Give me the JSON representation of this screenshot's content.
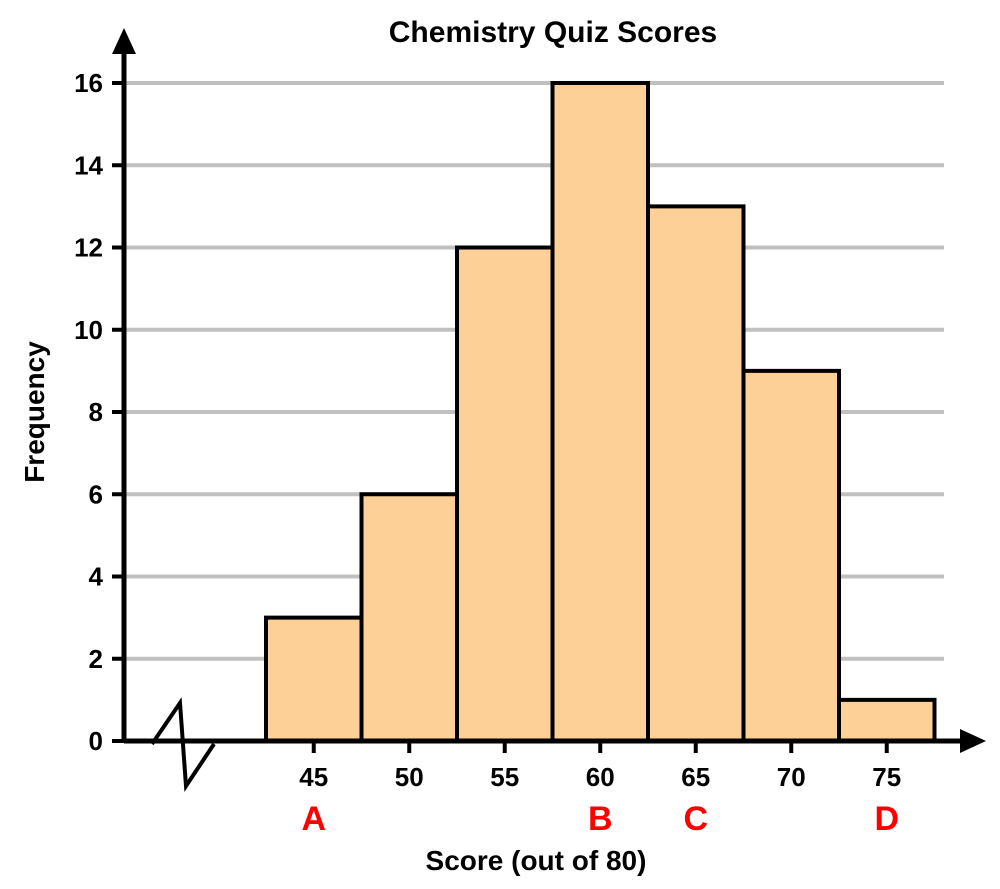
{
  "chart_data": {
    "type": "bar",
    "title": "Chemistry Quiz Scores",
    "xlabel": "Score (out of 80)",
    "ylabel": "Frequency",
    "categories": [
      "45",
      "50",
      "55",
      "60",
      "65",
      "70",
      "75"
    ],
    "values": [
      3,
      6,
      12,
      16,
      13,
      9,
      1
    ],
    "ylim": [
      0,
      16
    ],
    "yticks": [
      "0",
      "2",
      "4",
      "6",
      "8",
      "10",
      "12",
      "14",
      "16"
    ],
    "grid": true,
    "axis_break": true,
    "bar_color": "#fdd098",
    "marker_color": "#ff0000",
    "markers": [
      {
        "label": "A",
        "category": "45"
      },
      {
        "label": "B",
        "category": "60"
      },
      {
        "label": "C",
        "category": "65"
      },
      {
        "label": "D",
        "category": "75"
      }
    ]
  }
}
